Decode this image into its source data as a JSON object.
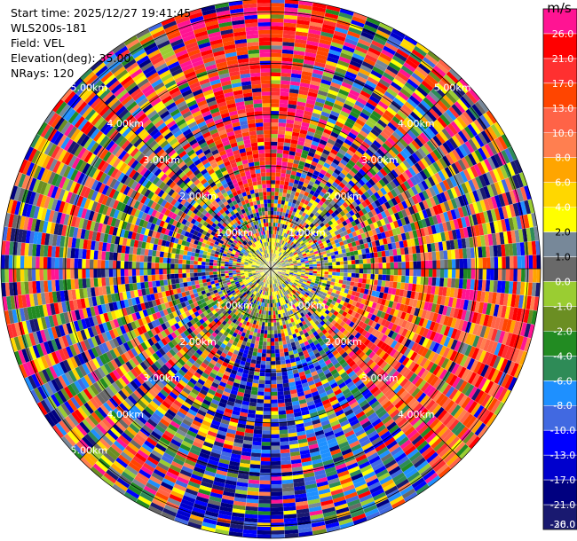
{
  "info": {
    "start_time": "Start time: 2025/12/27 19:41:45",
    "instrument": "WLS200s-181",
    "field": "Field: VEL",
    "elevation": "Elevation(deg): 35.00",
    "nrays": "NRays: 120"
  },
  "colorbar": {
    "unit": "m/s",
    "ticks": [
      "26.0",
      "21.0",
      "17.0",
      "13.0",
      "10.0",
      "8.0",
      "6.0",
      "4.0",
      "2.0",
      "1.0",
      "0.0",
      "-1.0",
      "-2.0",
      "-4.0",
      "-6.0",
      "-8.0",
      "-10.0",
      "-13.0",
      "-17.0",
      "-21.0",
      "-26.0",
      "-30.0"
    ],
    "colors": [
      "#ff1493",
      "#ff0000",
      "#ff3030",
      "#ff4500",
      "#ff6347",
      "#ff7f50",
      "#ffa500",
      "#ffd700",
      "#ffff00",
      "#778899",
      "#696969",
      "#9acd32",
      "#6b8e23",
      "#228b22",
      "#2e8b57",
      "#1e90ff",
      "#4169e1",
      "#0000ff",
      "#0000cd",
      "#000080",
      "#191970"
    ]
  },
  "chart_data": {
    "type": "heatmap",
    "projection": "polar-ppi",
    "field": "VEL",
    "unit": "m/s",
    "rays": 120,
    "azimuth_range_deg": [
      0,
      360
    ],
    "range_rings_km": [
      "1.00km",
      "2.00km",
      "3.00km",
      "4.00km",
      "5.00km"
    ],
    "max_range_km": 5.25,
    "value_range": [
      -30,
      30
    ],
    "rings_labeled": [
      {
        "ring": "1.00km",
        "quadrants": [
          "NW",
          "NE",
          "SW",
          "SE"
        ]
      },
      {
        "ring": "2.00km",
        "quadrants": [
          "NW",
          "NE",
          "SW",
          "SE"
        ]
      },
      {
        "ring": "3.00km",
        "quadrants": [
          "NW",
          "NE",
          "SW",
          "SE"
        ]
      },
      {
        "ring": "4.00km",
        "quadrants": [
          "NW",
          "NE",
          "SW",
          "SE"
        ]
      },
      {
        "ring": "5.00km",
        "quadrants": [
          "NW",
          "NE",
          "SW"
        ]
      }
    ]
  }
}
